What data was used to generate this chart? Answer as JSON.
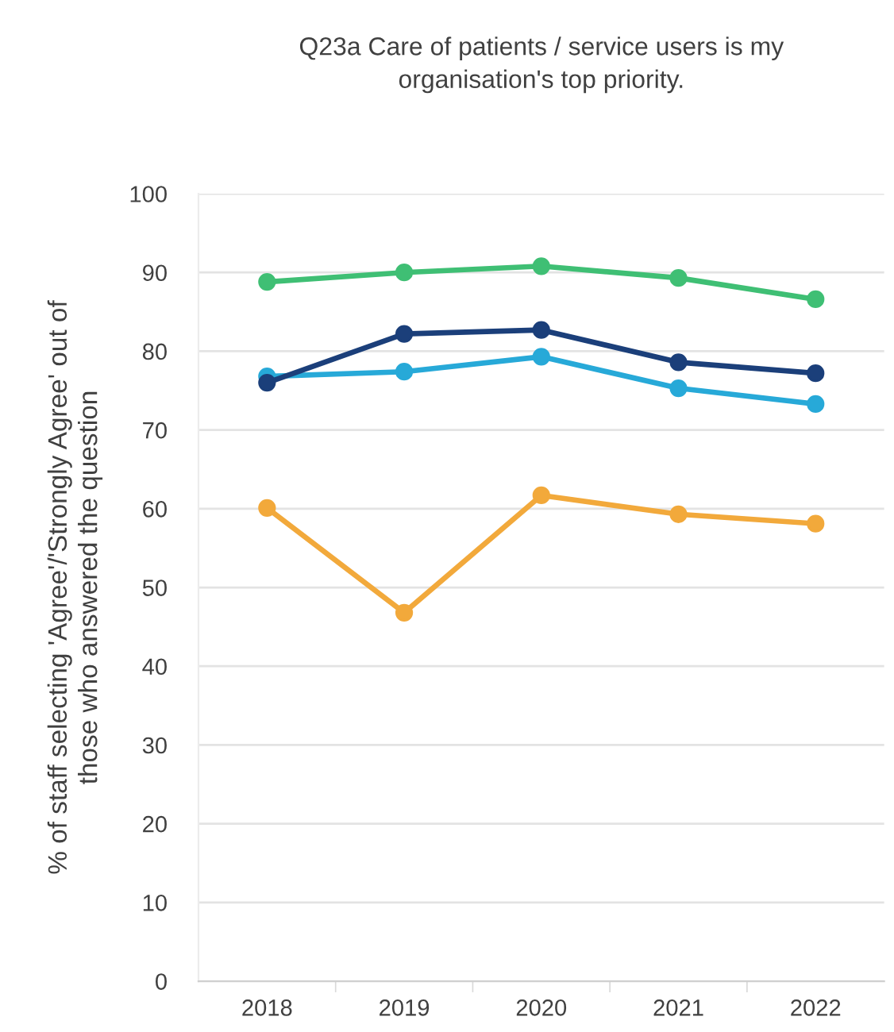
{
  "chart_data": {
    "type": "line",
    "title": "Q23a Care of patients / service users is my\norganisation's top priority.",
    "ylabel": "% of staff selecting 'Agree'/'Strongly Agree' out of\nthose who answered the question",
    "categories": [
      "2018",
      "2019",
      "2020",
      "2021",
      "2022"
    ],
    "series": [
      {
        "color": "#3fbf74",
        "values": [
          88.8,
          90.0,
          90.8,
          89.3,
          86.6
        ]
      },
      {
        "color": "#27a9d8",
        "values": [
          76.8,
          77.4,
          79.3,
          75.3,
          73.3
        ]
      },
      {
        "color": "#1b3f7a",
        "values": [
          76.0,
          82.2,
          82.7,
          78.6,
          77.2
        ]
      },
      {
        "color": "#f2a93b",
        "values": [
          60.1,
          46.8,
          61.7,
          59.3,
          58.1
        ]
      }
    ],
    "ylim": [
      0,
      100
    ],
    "yticks": [
      0,
      10,
      20,
      30,
      40,
      50,
      60,
      70,
      80,
      90,
      100
    ],
    "grid": "y",
    "marker": "circle",
    "line_style": "solid"
  }
}
